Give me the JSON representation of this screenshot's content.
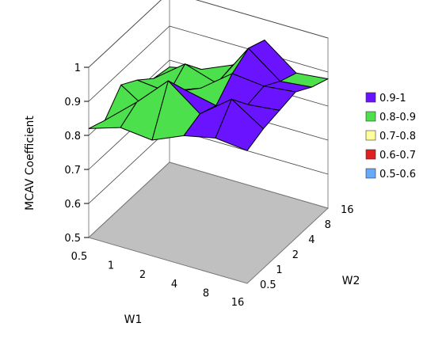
{
  "chart_data": {
    "type": "surface",
    "zlabel": "MCAV Coefficient",
    "xlabel": "W1",
    "ylabel": "W2",
    "x_categories": [
      "0.5",
      "1",
      "2",
      "4",
      "8",
      "16"
    ],
    "y_categories": [
      "0.5",
      "1",
      "2",
      "4",
      "8",
      "16"
    ],
    "z_ticks": [
      "0.5",
      "0.6",
      "0.7",
      "0.8",
      "0.9",
      "1"
    ],
    "zlim": [
      0.5,
      1.0
    ],
    "floor_color": "#c0c0c0",
    "z_matrix_rows_W1_cols_W2": [
      [
        0.89,
        0.91,
        0.92,
        0.93,
        0.9,
        0.88
      ],
      [
        0.9,
        0.97,
        0.91,
        0.92,
        0.89,
        0.87
      ],
      [
        0.88,
        0.9,
        0.88,
        0.93,
        0.96,
        0.94
      ],
      [
        0.84,
        0.97,
        0.9,
        0.86,
        0.83,
        0.84
      ],
      [
        0.85,
        0.88,
        0.8,
        0.82,
        0.86,
        0.8
      ],
      [
        0.82,
        0.8,
        0.86,
        0.83,
        0.79,
        0.78
      ]
    ],
    "legend": [
      {
        "label": "0.9-1",
        "color": "#6a13ff"
      },
      {
        "label": "0.8-0.9",
        "color": "#4ce04c"
      },
      {
        "label": "0.7-0.8",
        "color": "#ffff99"
      },
      {
        "label": "0.6-0.7",
        "color": "#e02020"
      },
      {
        "label": "0.5-0.6",
        "color": "#66aaff"
      }
    ]
  }
}
